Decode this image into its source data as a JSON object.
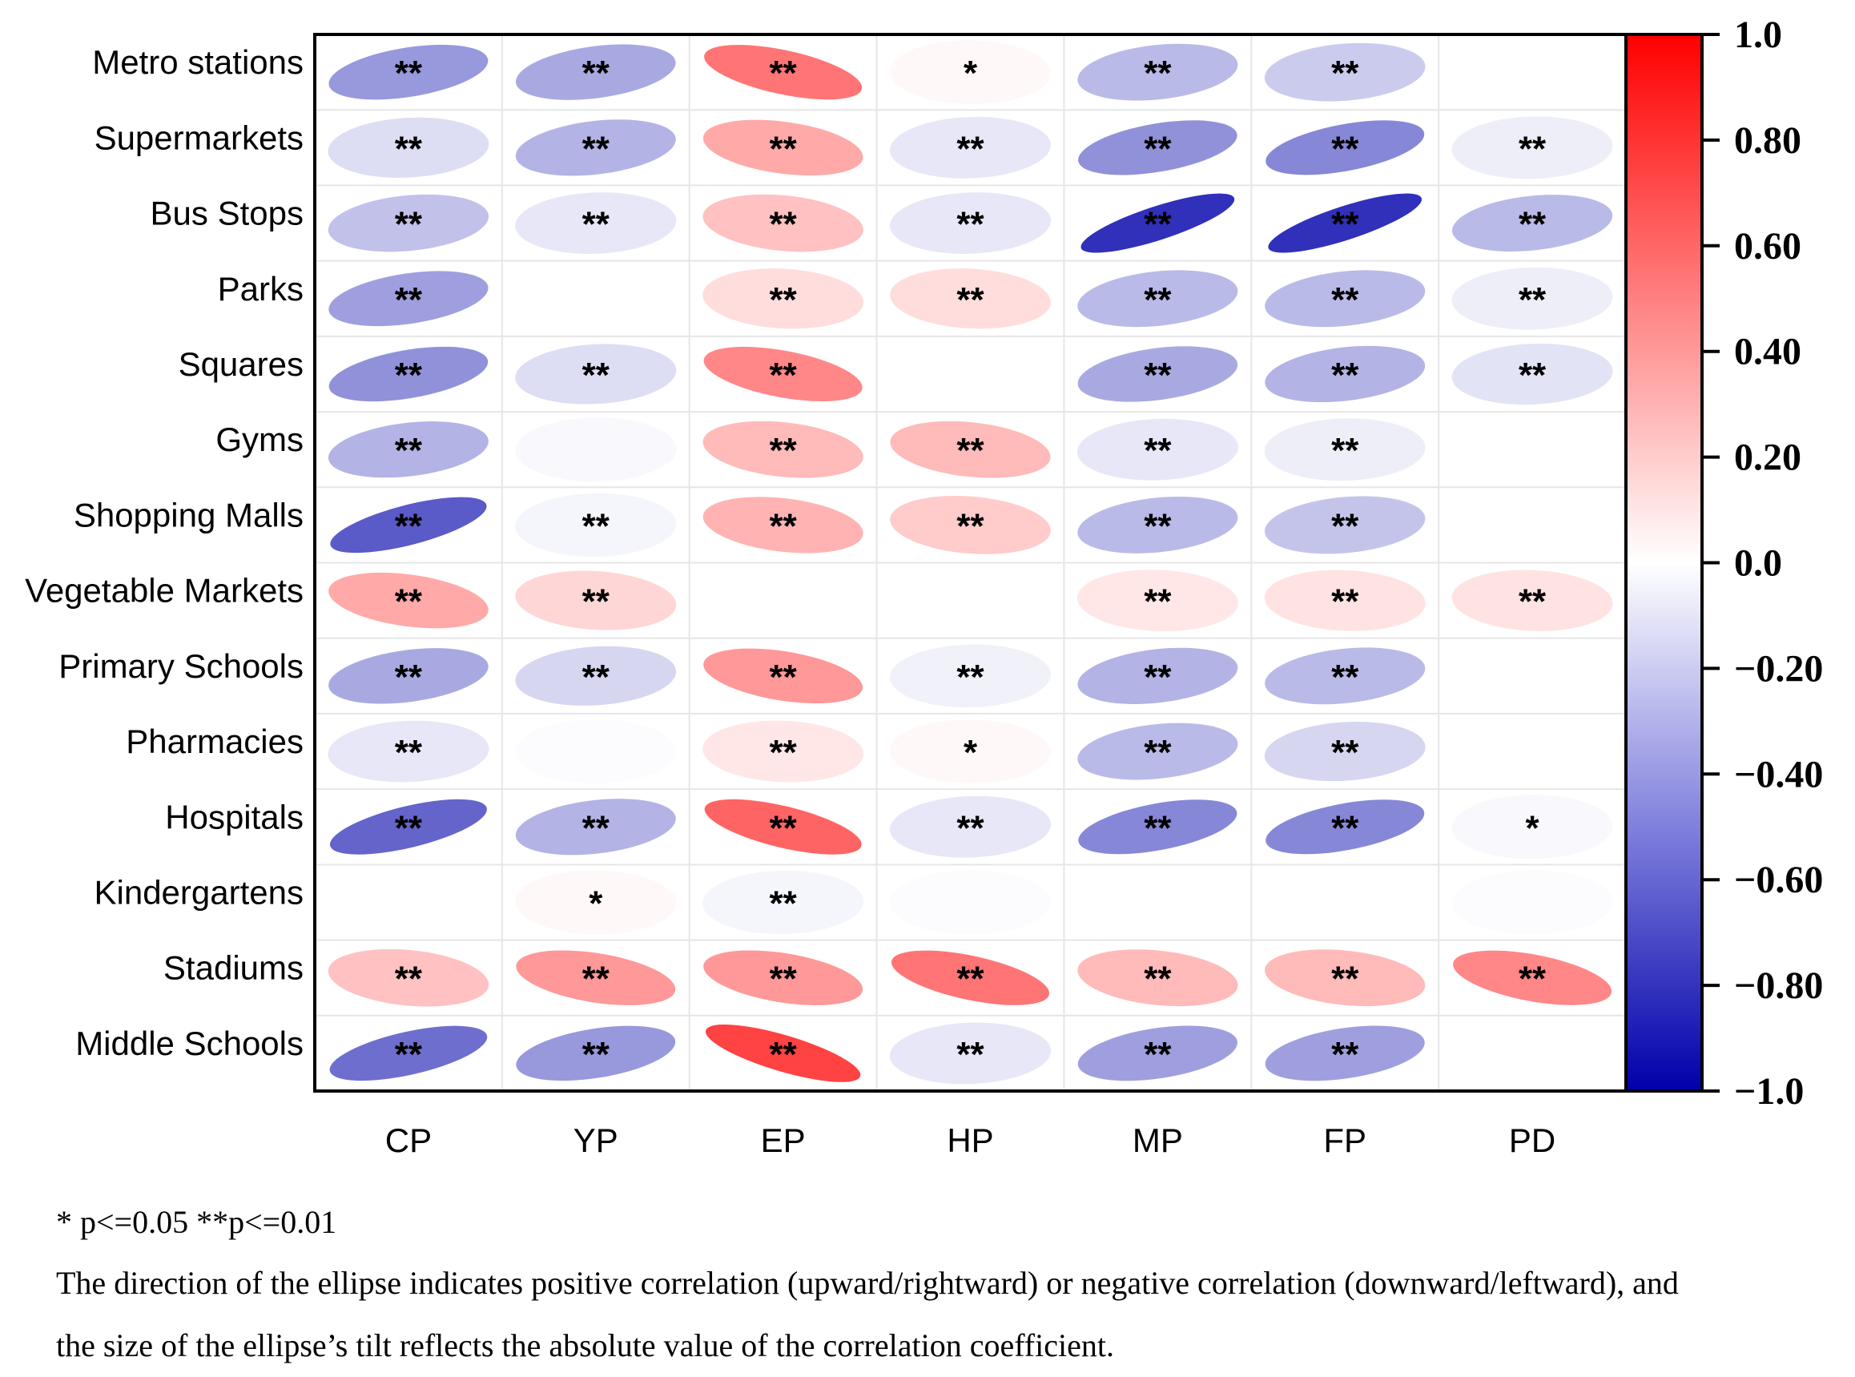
{
  "chart_data": {
    "type": "heatmap",
    "subtype": "correlation-ellipse",
    "title": "",
    "rows": [
      "Metro stations",
      "Supermarkets",
      "Bus Stops",
      "Parks",
      "Squares",
      "Gyms",
      "Shopping Malls",
      "Vegetable Markets",
      "Primary Schools",
      "Pharmacies",
      "Hospitals",
      "Kindergartens",
      "Stadiums",
      "Middle Schools"
    ],
    "columns": [
      "CP",
      "YP",
      "EP",
      "HP",
      "MP",
      "FP",
      "PD"
    ],
    "values": [
      [
        -0.3,
        -0.25,
        0.4,
        0.02,
        -0.2,
        -0.15,
        0.0
      ],
      [
        -0.1,
        -0.22,
        0.25,
        -0.07,
        -0.32,
        -0.35,
        -0.05
      ],
      [
        -0.18,
        -0.07,
        0.18,
        -0.07,
        -0.6,
        -0.6,
        -0.2
      ],
      [
        -0.28,
        0.0,
        0.1,
        0.1,
        -0.2,
        -0.2,
        -0.05
      ],
      [
        -0.32,
        -0.1,
        0.35,
        0.0,
        -0.25,
        -0.22,
        -0.08
      ],
      [
        -0.22,
        -0.02,
        0.2,
        0.2,
        -0.07,
        -0.05,
        0.0
      ],
      [
        -0.48,
        -0.03,
        0.22,
        0.15,
        -0.2,
        -0.17,
        0.0
      ],
      [
        0.25,
        0.12,
        0.0,
        0.0,
        0.07,
        0.08,
        0.08
      ],
      [
        -0.25,
        -0.12,
        0.3,
        -0.04,
        -0.22,
        -0.2,
        0.0
      ],
      [
        -0.07,
        -0.01,
        0.07,
        0.02,
        -0.2,
        -0.12,
        0.0
      ],
      [
        -0.45,
        -0.22,
        0.45,
        -0.07,
        -0.35,
        -0.35,
        -0.02
      ],
      [
        0.0,
        0.02,
        -0.03,
        -0.01,
        0.0,
        0.0,
        -0.01
      ],
      [
        0.18,
        0.3,
        0.3,
        0.4,
        0.2,
        0.2,
        0.35
      ],
      [
        -0.42,
        -0.3,
        0.55,
        -0.07,
        -0.28,
        -0.28,
        0.0
      ]
    ],
    "significance": [
      [
        "**",
        "**",
        "**",
        "*",
        "**",
        "**",
        ""
      ],
      [
        "**",
        "**",
        "**",
        "**",
        "**",
        "**",
        "**"
      ],
      [
        "**",
        "**",
        "**",
        "**",
        "**",
        "**",
        "**"
      ],
      [
        "**",
        "",
        "**",
        "**",
        "**",
        "**",
        "**"
      ],
      [
        "**",
        "**",
        "**",
        "",
        "**",
        "**",
        "**"
      ],
      [
        "**",
        "",
        "**",
        "**",
        "**",
        "**",
        ""
      ],
      [
        "**",
        "**",
        "**",
        "**",
        "**",
        "**",
        ""
      ],
      [
        "**",
        "**",
        "",
        "",
        "**",
        "**",
        "**"
      ],
      [
        "**",
        "**",
        "**",
        "**",
        "**",
        "**",
        ""
      ],
      [
        "**",
        "",
        "**",
        "*",
        "**",
        "**",
        ""
      ],
      [
        "**",
        "**",
        "**",
        "**",
        "**",
        "**",
        "*"
      ],
      [
        "",
        "*",
        "**",
        "",
        "",
        "",
        ""
      ],
      [
        "**",
        "**",
        "**",
        "**",
        "**",
        "**",
        "**"
      ],
      [
        "**",
        "**",
        "**",
        "**",
        "**",
        "**",
        ""
      ]
    ],
    "colorbar": {
      "range": [
        -1.0,
        1.0
      ],
      "tick_values": [
        1.0,
        0.8,
        0.6,
        0.4,
        0.2,
        0.0,
        -0.2,
        -0.4,
        -0.6,
        -0.8,
        -1.0
      ],
      "tick_labels": [
        "1.0",
        "0.80",
        "0.60",
        "0.40",
        "0.20",
        "0.0",
        "−0.20",
        "−0.40",
        "−0.60",
        "−0.80",
        "−1.0"
      ],
      "color_min": "#0000aa",
      "color_mid": "#ffffff",
      "color_max": "#ff0000"
    },
    "grid": true,
    "legend": "right"
  },
  "footnote": {
    "significance": "* p<=0.05   **p<=0.01",
    "description_line1": "The direction of the ellipse indicates positive correlation (upward/rightward) or negative correlation (downward/leftward), and",
    "description_line2": "the size of the ellipse’s tilt reflects the absolute value of the correlation coefficient."
  }
}
